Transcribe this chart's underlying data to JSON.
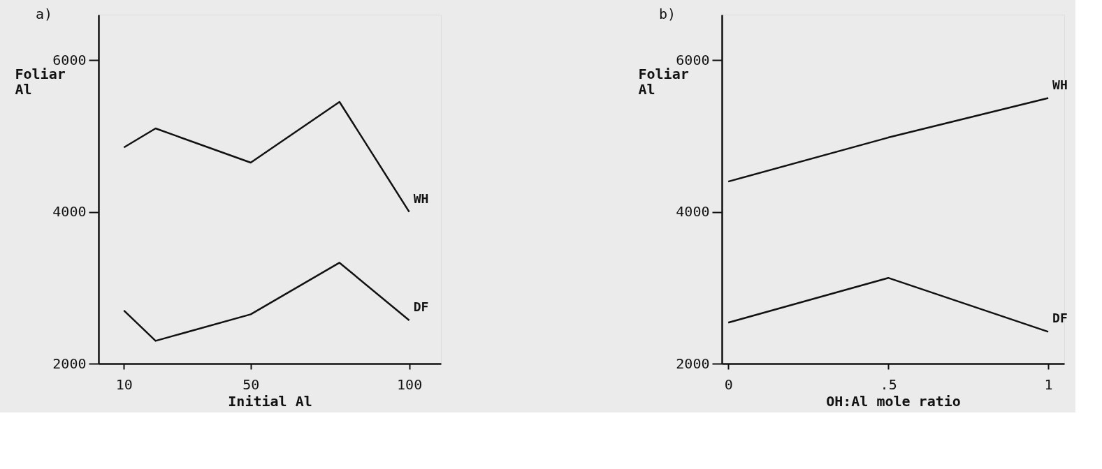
{
  "chart_data": [
    {
      "type": "line",
      "title": "a)",
      "xlabel": "Initial Al",
      "ylabel": "Foliar Al",
      "x": [
        10,
        20,
        50,
        78,
        100
      ],
      "series": [
        {
          "name": "WH",
          "color": "#111111",
          "values": [
            4850,
            5100,
            4650,
            5450,
            4000
          ]
        },
        {
          "name": "DF",
          "color": "#111111",
          "values": [
            2700,
            2300,
            2650,
            3330,
            2570
          ]
        }
      ],
      "xlim": [
        2,
        110
      ],
      "xticks": [
        10,
        50,
        100
      ],
      "ylim": [
        2000,
        6600
      ],
      "yticks": [
        2000,
        4000,
        6000
      ],
      "grid": false,
      "legend": false,
      "marker": "none",
      "line_style": "solid"
    },
    {
      "type": "line",
      "title": "b)",
      "xlabel": "OH:Al mole ratio",
      "ylabel": "Foliar Al",
      "x": [
        0,
        0.5,
        1
      ],
      "series": [
        {
          "name": "WH",
          "color": "#111111",
          "values": [
            4400,
            4980,
            5500
          ]
        },
        {
          "name": "DF",
          "color": "#111111",
          "values": [
            2540,
            3130,
            2420
          ]
        }
      ],
      "xlim": [
        -0.02,
        1.05
      ],
      "xticks": [
        0,
        {
          "value": 0.5,
          "label": ".5"
        },
        1
      ],
      "ylim": [
        2000,
        6600
      ],
      "yticks": [
        2000,
        4000,
        6000
      ],
      "grid": false,
      "legend": false,
      "marker": "none",
      "line_style": "solid"
    }
  ]
}
